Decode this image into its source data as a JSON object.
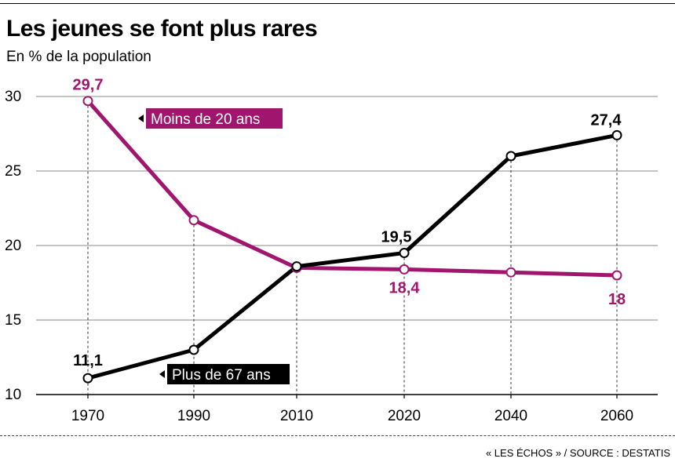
{
  "title": "Les jeunes se font plus rares",
  "subtitle": "En % de la population",
  "source": "« LES ÉCHOS » / SOURCE : DESTATIS",
  "colors": {
    "moins20": "#a0166e",
    "plus67": "#000000"
  },
  "chart_data": {
    "type": "line",
    "title": "Les jeunes se font plus rares",
    "ylabel": "",
    "xlabel": "",
    "ylim": [
      10,
      30
    ],
    "yticks": [
      10,
      15,
      20,
      25,
      30
    ],
    "x": [
      "1970",
      "1990",
      "2010",
      "2020",
      "2040",
      "2060"
    ],
    "grid": "horizontal",
    "series": [
      {
        "name": "Moins de 20 ans",
        "color": "#a0166e",
        "values": [
          29.7,
          21.7,
          18.5,
          18.4,
          18.2,
          18.0
        ],
        "labels": [
          "29,7",
          "",
          "",
          "18,4",
          "",
          "18"
        ]
      },
      {
        "name": "Plus de 67 ans",
        "color": "#000000",
        "values": [
          11.1,
          13.0,
          18.6,
          19.5,
          26.0,
          27.4
        ],
        "labels": [
          "11,1",
          "",
          "",
          "19,5",
          "",
          "27,4"
        ]
      }
    ]
  }
}
